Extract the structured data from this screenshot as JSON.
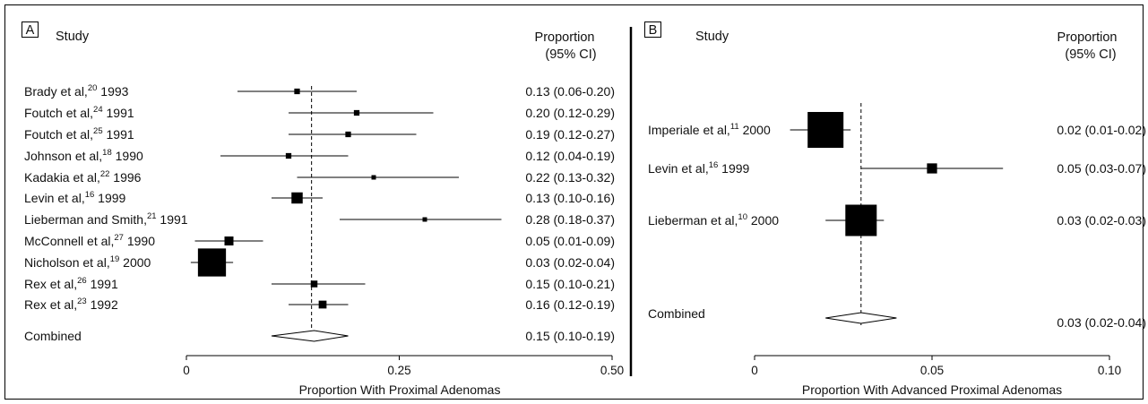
{
  "chart_data": [
    {
      "type": "forest",
      "panel_label": "A",
      "header_study": "Study",
      "header_proportion": "Proportion",
      "header_ci": "(95% CI)",
      "xlabel": "Proportion With Proximal Adenomas",
      "xlim": [
        0,
        0.5
      ],
      "xticks": [
        "0",
        "0.25",
        "0.50"
      ],
      "xtick_values": [
        0,
        0.25,
        0.5
      ],
      "reference_value": 0.147,
      "studies": [
        {
          "name": "Brady et al,",
          "ref": "20",
          "year": "1993",
          "estimate": 0.13,
          "ci": [
            0.06,
            0.2
          ],
          "weight": 0.5,
          "label": "0.13 (0.06-0.20)"
        },
        {
          "name": "Foutch et al,",
          "ref": "24",
          "year": "1991",
          "estimate": 0.2,
          "ci": [
            0.12,
            0.29
          ],
          "weight": 0.5,
          "label": "0.20 (0.12-0.29)"
        },
        {
          "name": "Foutch et al,",
          "ref": "25",
          "year": "1991",
          "estimate": 0.19,
          "ci": [
            0.12,
            0.27
          ],
          "weight": 0.5,
          "label": "0.19 (0.12-0.27)"
        },
        {
          "name": "Johnson et al,",
          "ref": "18",
          "year": "1990",
          "estimate": 0.12,
          "ci": [
            0.04,
            0.19
          ],
          "weight": 0.5,
          "label": "0.12 (0.04-0.19)"
        },
        {
          "name": "Kadakia et al,",
          "ref": "22",
          "year": "1996",
          "estimate": 0.22,
          "ci": [
            0.13,
            0.32
          ],
          "weight": 0.4,
          "label": "0.22 (0.13-0.32)"
        },
        {
          "name": "Levin et al,",
          "ref": "16",
          "year": "1999",
          "estimate": 0.13,
          "ci": [
            0.1,
            0.16
          ],
          "weight": 1.0,
          "label": "0.13 (0.10-0.16)"
        },
        {
          "name": "Lieberman and Smith,",
          "ref": "21",
          "year": "1991",
          "estimate": 0.28,
          "ci": [
            0.18,
            0.37
          ],
          "weight": 0.4,
          "label": "0.28 (0.18-0.37)"
        },
        {
          "name": "McConnell et al,",
          "ref": "27",
          "year": "1990",
          "estimate": 0.05,
          "ci": [
            0.01,
            0.09
          ],
          "weight": 0.8,
          "label": "0.05 (0.01-0.09)"
        },
        {
          "name": "Nicholson et al,",
          "ref": "19",
          "year": "2000",
          "estimate": 0.03,
          "ci": [
            0.02,
            0.04
          ],
          "weight": 2.5,
          "label": "0.03 (0.02-0.04)"
        },
        {
          "name": "Rex et al,",
          "ref": "26",
          "year": "1991",
          "estimate": 0.15,
          "ci": [
            0.1,
            0.21
          ],
          "weight": 0.6,
          "label": "0.15 (0.10-0.21)"
        },
        {
          "name": "Rex et al,",
          "ref": "23",
          "year": "1992",
          "estimate": 0.16,
          "ci": [
            0.12,
            0.19
          ],
          "weight": 0.7,
          "label": "0.16 (0.12-0.19)"
        }
      ],
      "combined": {
        "name": "Combined",
        "estimate": 0.15,
        "ci": [
          0.1,
          0.19
        ],
        "label": "0.15 (0.10-0.19)"
      }
    },
    {
      "type": "forest",
      "panel_label": "B",
      "header_study": "Study",
      "header_proportion": "Proportion",
      "header_ci": "(95% CI)",
      "xlabel": "Proportion With Advanced Proximal Adenomas",
      "xlim": [
        0,
        0.1
      ],
      "xticks": [
        "0",
        "0.05",
        "0.10"
      ],
      "xtick_values": [
        0,
        0.05,
        0.1
      ],
      "reference_value": 0.03,
      "studies": [
        {
          "name": "Imperiale et al,",
          "ref": "11",
          "year": "2000",
          "estimate": 0.02,
          "ci": [
            0.01,
            0.02
          ],
          "weight": 3.2,
          "label": "0.02 (0.01-0.02)"
        },
        {
          "name": "Levin et al,",
          "ref": "16",
          "year": "1999",
          "estimate": 0.05,
          "ci": [
            0.03,
            0.07
          ],
          "weight": 0.9,
          "label": "0.05 (0.03-0.07)"
        },
        {
          "name": "Lieberman et al,",
          "ref": "10",
          "year": "2000",
          "estimate": 0.03,
          "ci": [
            0.02,
            0.03
          ],
          "weight": 2.8,
          "label": "0.03 (0.02-0.03)"
        }
      ],
      "combined": {
        "name": "Combined",
        "estimate": 0.03,
        "ci": [
          0.02,
          0.04
        ],
        "label": "0.03 (0.02-0.04)"
      }
    }
  ]
}
